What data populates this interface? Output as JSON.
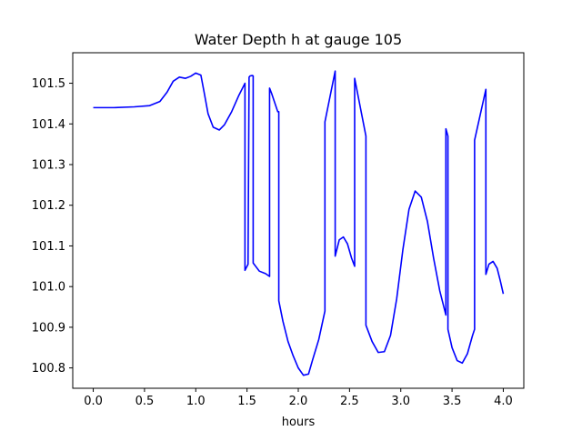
{
  "chart_data": {
    "type": "line",
    "title": "Water Depth h at gauge 105",
    "xlabel": "hours",
    "ylabel": "",
    "xlim": [
      -0.2,
      4.2
    ],
    "ylim": [
      100.75,
      101.575
    ],
    "grid": false,
    "legend": null,
    "colors": {
      "series": "#0000ff",
      "axes": "#000000",
      "background": "#ffffff"
    },
    "xticks": [
      0.0,
      0.5,
      1.0,
      1.5,
      2.0,
      2.5,
      3.0,
      3.5,
      4.0
    ],
    "xtick_labels": [
      "0.0",
      "0.5",
      "1.0",
      "1.5",
      "2.0",
      "2.5",
      "3.0",
      "3.5",
      "4.0"
    ],
    "yticks": [
      100.8,
      100.9,
      101.0,
      101.1,
      101.2,
      101.3,
      101.4,
      101.5
    ],
    "ytick_labels": [
      "100.8",
      "100.9",
      "101.0",
      "101.1",
      "101.2",
      "101.3",
      "101.4",
      "101.5"
    ],
    "series": [
      {
        "x": [
          0.0,
          0.2,
          0.4,
          0.55,
          0.65,
          0.72,
          0.78,
          0.84,
          0.9,
          0.95,
          1.0,
          1.05,
          1.08,
          1.12,
          1.17,
          1.23,
          1.28,
          1.35,
          1.42,
          1.48,
          1.48,
          1.51,
          1.52,
          1.53,
          1.55,
          1.56,
          1.56,
          1.62,
          1.68,
          1.72,
          1.72,
          1.74,
          1.8,
          1.81,
          1.81,
          1.85,
          1.9,
          1.95,
          2.0,
          2.05,
          2.1,
          2.14,
          2.2,
          2.26,
          2.26,
          2.36,
          2.36,
          2.4,
          2.44,
          2.48,
          2.52,
          2.55,
          2.55,
          2.66,
          2.66,
          2.72,
          2.78,
          2.84,
          2.9,
          2.96,
          3.02,
          3.08,
          3.14,
          3.2,
          3.26,
          3.32,
          3.38,
          3.44,
          3.44,
          3.46,
          3.46,
          3.5,
          3.55,
          3.6,
          3.65,
          3.7,
          3.72,
          3.72,
          3.83,
          3.83,
          3.86,
          3.9,
          3.94,
          3.97,
          4.0
        ],
        "y": [
          101.44,
          101.44,
          101.442,
          101.445,
          101.455,
          101.478,
          101.505,
          101.515,
          101.512,
          101.517,
          101.525,
          101.52,
          101.48,
          101.425,
          101.392,
          101.385,
          101.398,
          101.43,
          101.47,
          101.5,
          101.04,
          101.055,
          101.515,
          101.518,
          101.519,
          101.518,
          101.058,
          101.038,
          101.032,
          101.025,
          101.488,
          101.475,
          101.43,
          101.43,
          100.965,
          100.915,
          100.865,
          100.83,
          100.8,
          100.782,
          100.785,
          100.82,
          100.87,
          100.94,
          101.405,
          101.53,
          101.075,
          101.115,
          101.122,
          101.105,
          101.07,
          101.05,
          101.512,
          101.37,
          100.905,
          100.865,
          100.838,
          100.84,
          100.88,
          100.97,
          101.09,
          101.19,
          101.235,
          101.22,
          101.16,
          101.07,
          100.99,
          100.93,
          101.388,
          101.37,
          100.895,
          100.85,
          100.818,
          100.812,
          100.835,
          100.88,
          100.895,
          101.36,
          101.485,
          101.03,
          101.055,
          101.062,
          101.045,
          101.015,
          100.982
        ]
      }
    ]
  }
}
